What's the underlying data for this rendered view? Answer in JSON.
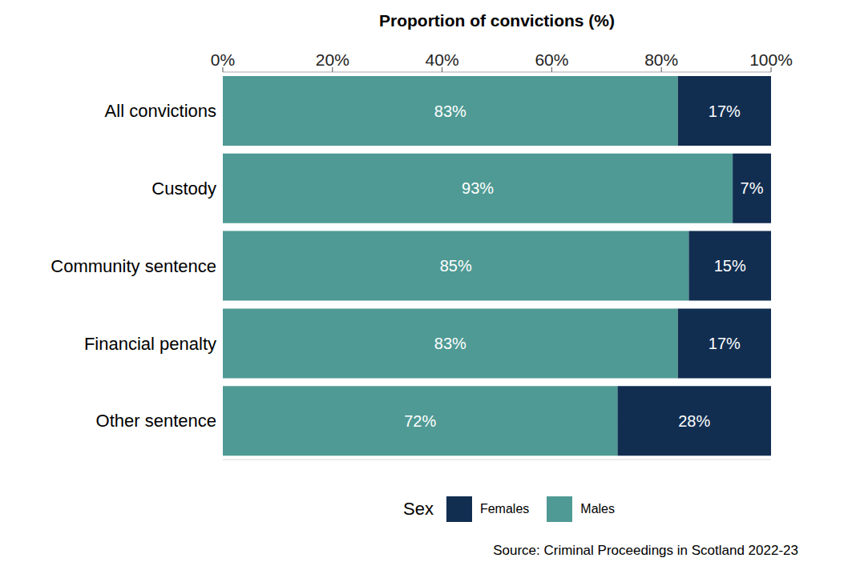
{
  "chart_data": {
    "type": "bar",
    "orientation": "horizontal",
    "stacked": true,
    "data_labels": true,
    "grid": true,
    "x_label": "Proportion of convictions (%)",
    "legend_title": "Sex",
    "source": "Source: Criminal Proceedings in Scotland 2022-23",
    "categories": [
      "All convictions",
      "Custody",
      "Community sentence",
      "Financial penalty",
      "Other sentence"
    ],
    "series": [
      {
        "name": "Males",
        "color": "#4f9a94",
        "values": [
          83,
          93,
          85,
          83,
          72
        ],
        "value_labels": [
          "83%",
          "93%",
          "85%",
          "83%",
          "72%"
        ]
      },
      {
        "name": "Females",
        "color": "#112e51",
        "values": [
          17,
          7,
          15,
          17,
          28
        ],
        "value_labels": [
          "17%",
          "7%",
          "15%",
          "17%",
          "28%"
        ]
      }
    ],
    "xlim": [
      0,
      100
    ],
    "xticks": [
      {
        "value": 0,
        "label": "0%"
      },
      {
        "value": 20,
        "label": "20%"
      },
      {
        "value": 40,
        "label": "40%"
      },
      {
        "value": 60,
        "label": "60%"
      },
      {
        "value": 80,
        "label": "80%"
      },
      {
        "value": 100,
        "label": "100%"
      }
    ]
  }
}
